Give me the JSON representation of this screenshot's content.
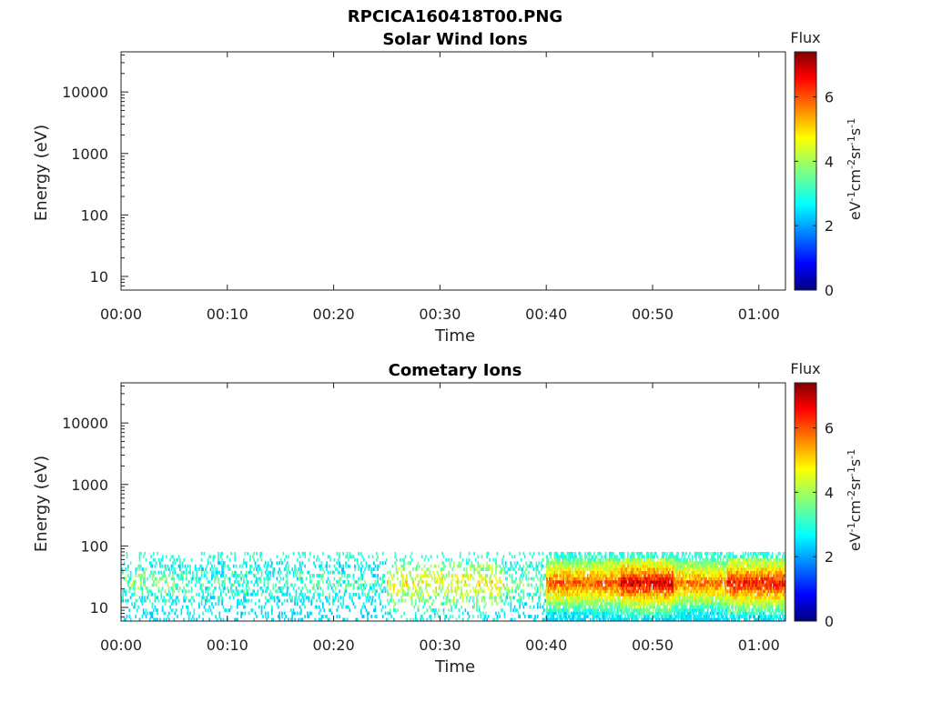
{
  "figure": {
    "title": "RPCICA160418T00.PNG"
  },
  "colors": {
    "colormap": [
      "#00007f",
      "#0000ff",
      "#007fff",
      "#00ffff",
      "#7fff7f",
      "#ffff00",
      "#ff7f00",
      "#ff0000",
      "#7f0000"
    ]
  },
  "chart_data": [
    {
      "type": "heatmap",
      "title": "Solar Wind Ions",
      "xlabel": "Time",
      "ylabel": "Energy (eV)",
      "x_ticks": [
        "00:00",
        "00:10",
        "00:20",
        "00:30",
        "00:40",
        "00:50",
        "01:00"
      ],
      "x_tick_minutes": [
        0,
        10,
        20,
        30,
        40,
        50,
        60
      ],
      "xlim_minutes": [
        0,
        62.5
      ],
      "y_scale": "log",
      "y_ticks": [
        "10",
        "100",
        "1000",
        "10000"
      ],
      "y_tick_values": [
        10,
        100,
        1000,
        10000
      ],
      "ylim": [
        6,
        45000
      ],
      "colorbar": {
        "title": "Flux",
        "ticks": [
          "0",
          "2",
          "4",
          "6"
        ],
        "tick_values": [
          0,
          2,
          4,
          6
        ],
        "range": [
          0,
          7.4
        ]
      },
      "data": "empty"
    },
    {
      "type": "heatmap",
      "title": "Cometary Ions",
      "xlabel": "Time",
      "ylabel": "Energy (eV)",
      "x_ticks": [
        "00:00",
        "00:10",
        "00:20",
        "00:30",
        "00:40",
        "00:50",
        "01:00"
      ],
      "x_tick_minutes": [
        0,
        10,
        20,
        30,
        40,
        50,
        60
      ],
      "xlim_minutes": [
        0,
        62.5
      ],
      "y_scale": "log",
      "y_ticks": [
        "10",
        "100",
        "1000",
        "10000"
      ],
      "y_tick_values": [
        10,
        100,
        1000,
        10000
      ],
      "ylim": [
        6,
        45000
      ],
      "colorbar": {
        "title": "Flux",
        "ticks": [
          "0",
          "2",
          "4",
          "6"
        ],
        "tick_values": [
          0,
          2,
          4,
          6
        ],
        "range": [
          0,
          7.4
        ]
      },
      "energy_range_eV": [
        6,
        80
      ],
      "flux_by_time": [
        {
          "t": [
            0,
            5
          ],
          "flux": 3.5
        },
        {
          "t": [
            5,
            25
          ],
          "flux": 3.0
        },
        {
          "t": [
            25,
            36
          ],
          "flux": 4.5
        },
        {
          "t": [
            36,
            40
          ],
          "flux": 3.5
        },
        {
          "t": [
            40,
            47
          ],
          "flux": 6.0
        },
        {
          "t": [
            47,
            52
          ],
          "flux": 6.8
        },
        {
          "t": [
            52,
            57
          ],
          "flux": 5.8
        },
        {
          "t": [
            57,
            62.5
          ],
          "flux": 6.5
        }
      ]
    }
  ]
}
